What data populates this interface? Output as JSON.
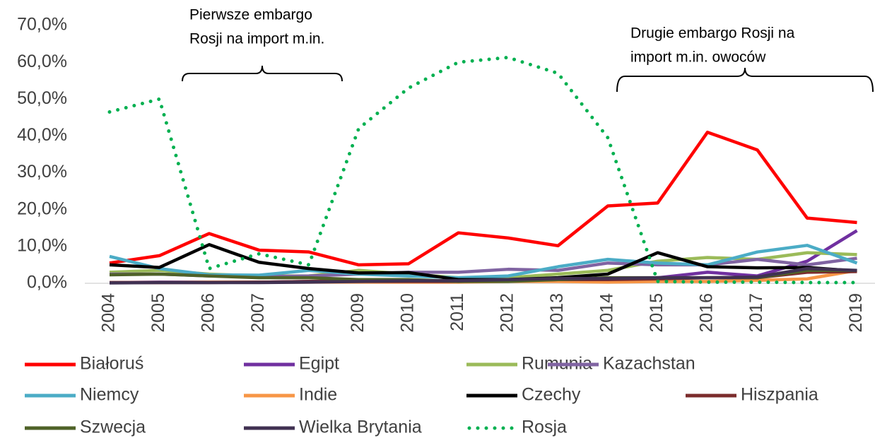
{
  "chart_data": {
    "type": "line",
    "categories": [
      "2004",
      "2005",
      "2006",
      "2007",
      "2008",
      "2009",
      "2010",
      "2011",
      "2012",
      "2013",
      "2014",
      "2015",
      "2016",
      "2017",
      "2018",
      "2019"
    ],
    "ylim": [
      0,
      70
    ],
    "yticks": [
      {
        "value": 0,
        "label": "0,0%"
      },
      {
        "value": 10,
        "label": "10,0%"
      },
      {
        "value": 20,
        "label": "20,0%"
      },
      {
        "value": 30,
        "label": "30,0%"
      },
      {
        "value": 40,
        "label": "40,0%"
      },
      {
        "value": 50,
        "label": "50,0%"
      },
      {
        "value": 60,
        "label": "60,0%"
      },
      {
        "value": 70,
        "label": "70,0%"
      }
    ],
    "annotations": [
      "Pierwsze embargo",
      "Rosji na import m.in.",
      "Drugie embargo Rosji na",
      "import m.in. owoców"
    ],
    "series": [
      {
        "name": "Białoruś",
        "color": "#ff0000",
        "values": [
          5.5,
          7.5,
          13.5,
          9,
          8.5,
          5,
          5.3,
          13.7,
          12.3,
          10.2,
          21,
          21.8,
          41,
          36.2,
          17.7,
          16.5
        ]
      },
      {
        "name": "Egipt",
        "color": "#7030a0",
        "values": [
          0.2,
          0.3,
          0.3,
          0.3,
          0.5,
          0.5,
          0.5,
          0.5,
          0.7,
          1,
          1,
          1.5,
          3,
          2,
          6,
          14.3
        ]
      },
      {
        "name": "Rumunia",
        "color": "#9bbb59",
        "values": [
          3,
          3.5,
          2.5,
          2,
          2,
          3.5,
          2.5,
          1.5,
          1.5,
          2.5,
          3.5,
          6,
          7,
          6.5,
          8.3,
          7.8
        ]
      },
      {
        "name": "Kazachstan",
        "color": "#8064a2",
        "values": [
          2.5,
          2.5,
          2,
          1.8,
          2,
          2.5,
          3,
          3,
          3.8,
          3.5,
          5.5,
          5,
          5,
          6.5,
          5,
          6.8
        ]
      },
      {
        "name": "Niemcy",
        "color": "#4bacc6",
        "values": [
          7.3,
          4,
          2.3,
          2.2,
          3.5,
          2.5,
          2,
          1.5,
          2,
          4.5,
          6.5,
          5.5,
          5,
          8.5,
          10.3,
          5.5
        ]
      },
      {
        "name": "Indie",
        "color": "#f79646",
        "values": [
          0.2,
          0.2,
          0.3,
          0.3,
          0.3,
          0.3,
          0.3,
          0.3,
          0.5,
          0.5,
          0.3,
          0.5,
          0.5,
          0.8,
          1.2,
          3.5
        ]
      },
      {
        "name": "Czechy",
        "color": "#000000",
        "values": [
          5,
          4.3,
          10.5,
          5.7,
          4,
          2.8,
          2.9,
          1,
          1,
          1.5,
          2.5,
          8.3,
          4.5,
          4.2,
          4.3,
          3.3
        ]
      },
      {
        "name": "Hiszpania",
        "color": "#7b2c2c",
        "values": [
          0.2,
          0.2,
          0.2,
          0.3,
          0.5,
          0.5,
          0.5,
          0.5,
          0.7,
          1,
          1,
          1.2,
          1.5,
          1.5,
          3,
          3.2
        ]
      },
      {
        "name": "Szwecja",
        "color": "#4f6228",
        "values": [
          2.3,
          2.5,
          2,
          1.5,
          1.5,
          1,
          1,
          0.5,
          0.5,
          1,
          1.5,
          1.5,
          1.5,
          1.5,
          3.5,
          3.5
        ]
      },
      {
        "name": "Wielka Brytania",
        "color": "#403152",
        "values": [
          0.1,
          0.2,
          0.2,
          0.2,
          0.3,
          0.5,
          0.7,
          0.7,
          1,
          1.3,
          1.3,
          1.5,
          1.5,
          1.7,
          4,
          3.5
        ]
      },
      {
        "name": "Rosja",
        "color": "#00b050",
        "style": "dotted",
        "values": [
          46.5,
          50,
          4,
          8,
          5,
          42,
          53,
          60,
          61.3,
          57,
          39.5,
          0.5,
          0.3,
          0.3,
          0.2,
          0.2
        ]
      }
    ]
  }
}
